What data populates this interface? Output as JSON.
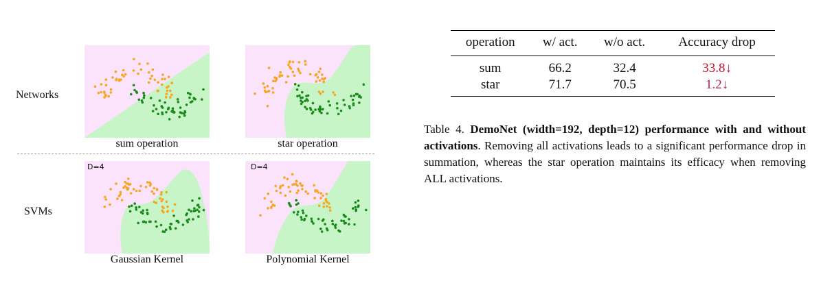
{
  "figure": {
    "row_labels": {
      "networks": "Networks",
      "svms": "SVMs"
    },
    "panels": {
      "sum": {
        "caption": "sum operation"
      },
      "star": {
        "caption": "star operation"
      },
      "gaussian": {
        "caption": "Gaussian Kernel",
        "degree_label": "D=4"
      },
      "polynomial": {
        "caption": "Polynomial Kernel",
        "degree_label": "D=4"
      }
    },
    "colors": {
      "class_a": "#f5a623",
      "class_b": "#1a8a1a",
      "region_a": "#fbe3fb",
      "region_b": "#c8f5c8"
    }
  },
  "table": {
    "headers": [
      "operation",
      "w/ act.",
      "w/o act.",
      "Accuracy drop"
    ],
    "rows": [
      [
        "sum",
        "66.2",
        "32.4",
        "33.8↓"
      ],
      [
        "star",
        "71.7",
        "70.5",
        "1.2↓"
      ]
    ]
  },
  "caption": {
    "label": "Table 4.",
    "bold": "DemoNet (width=192, depth=12) performance with and without activations",
    "rest": ". Removing all activations leads to a significant performance drop in summation, whereas the star operation maintains its efficacy when removing ALL activations."
  }
}
